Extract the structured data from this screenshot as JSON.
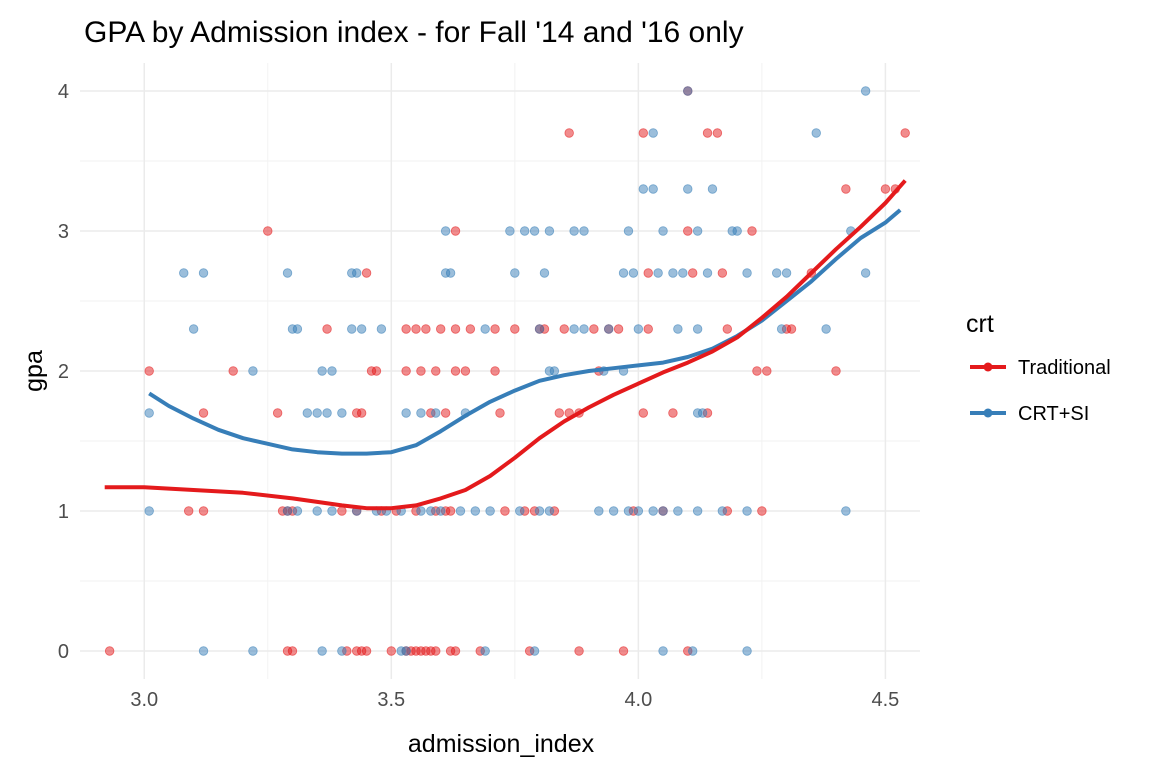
{
  "chart_data": {
    "type": "scatter",
    "title": "GPA by Admission index - for Fall '14 and '16 only",
    "xlabel": "admission_index",
    "ylabel": "gpa",
    "xlim": [
      2.87,
      4.57
    ],
    "ylim": [
      -0.2,
      4.2
    ],
    "x_ticks": [
      3.0,
      3.5,
      4.0,
      4.5
    ],
    "x_tick_labels": [
      "3.0",
      "3.5",
      "4.0",
      "4.5"
    ],
    "y_ticks": [
      0,
      1,
      2,
      3,
      4
    ],
    "y_tick_labels": [
      "0",
      "1",
      "2",
      "3",
      "4"
    ],
    "grid": true,
    "legend": {
      "title": "crt",
      "position": "right"
    },
    "series": [
      {
        "name": "Traditional",
        "color": "#E41A1C",
        "points": [
          [
            2.93,
            0
          ],
          [
            3.29,
            0
          ],
          [
            3.3,
            0
          ],
          [
            3.41,
            0
          ],
          [
            3.43,
            0
          ],
          [
            3.44,
            0
          ],
          [
            3.45,
            0
          ],
          [
            3.5,
            0
          ],
          [
            3.53,
            0
          ],
          [
            3.54,
            0
          ],
          [
            3.55,
            0
          ],
          [
            3.56,
            0
          ],
          [
            3.57,
            0
          ],
          [
            3.58,
            0
          ],
          [
            3.59,
            0
          ],
          [
            3.62,
            0
          ],
          [
            3.63,
            0
          ],
          [
            3.68,
            0
          ],
          [
            3.78,
            0
          ],
          [
            3.88,
            0
          ],
          [
            3.97,
            0
          ],
          [
            4.1,
            0
          ],
          [
            3.09,
            1
          ],
          [
            3.12,
            1
          ],
          [
            3.28,
            1
          ],
          [
            3.29,
            1
          ],
          [
            3.3,
            1
          ],
          [
            3.4,
            1
          ],
          [
            3.43,
            1
          ],
          [
            3.48,
            1
          ],
          [
            3.51,
            1
          ],
          [
            3.55,
            1
          ],
          [
            3.59,
            1
          ],
          [
            3.61,
            1
          ],
          [
            3.62,
            1
          ],
          [
            3.73,
            1
          ],
          [
            3.77,
            1
          ],
          [
            3.79,
            1
          ],
          [
            3.83,
            1
          ],
          [
            3.99,
            1
          ],
          [
            4.05,
            1
          ],
          [
            4.18,
            1
          ],
          [
            4.25,
            1
          ],
          [
            3.01,
            2
          ],
          [
            3.18,
            2
          ],
          [
            3.46,
            2
          ],
          [
            3.47,
            2
          ],
          [
            3.53,
            2
          ],
          [
            3.56,
            2
          ],
          [
            3.59,
            2
          ],
          [
            3.63,
            2
          ],
          [
            3.65,
            2
          ],
          [
            3.71,
            2
          ],
          [
            3.92,
            2
          ],
          [
            4.24,
            2
          ],
          [
            4.26,
            2
          ],
          [
            4.4,
            2
          ],
          [
            3.12,
            1.7
          ],
          [
            3.27,
            1.7
          ],
          [
            3.43,
            1.7
          ],
          [
            3.44,
            1.7
          ],
          [
            3.58,
            1.7
          ],
          [
            3.61,
            1.7
          ],
          [
            3.72,
            1.7
          ],
          [
            3.84,
            1.7
          ],
          [
            3.86,
            1.7
          ],
          [
            3.88,
            1.7
          ],
          [
            4.01,
            1.7
          ],
          [
            4.07,
            1.7
          ],
          [
            4.14,
            1.7
          ],
          [
            3.37,
            2.3
          ],
          [
            3.53,
            2.3
          ],
          [
            3.55,
            2.3
          ],
          [
            3.57,
            2.3
          ],
          [
            3.6,
            2.3
          ],
          [
            3.63,
            2.3
          ],
          [
            3.66,
            2.3
          ],
          [
            3.71,
            2.3
          ],
          [
            3.75,
            2.3
          ],
          [
            3.8,
            2.3
          ],
          [
            3.81,
            2.3
          ],
          [
            3.85,
            2.3
          ],
          [
            3.91,
            2.3
          ],
          [
            3.94,
            2.3
          ],
          [
            3.96,
            2.3
          ],
          [
            4.02,
            2.3
          ],
          [
            4.18,
            2.3
          ],
          [
            4.3,
            2.3
          ],
          [
            4.31,
            2.3
          ],
          [
            3.45,
            2.7
          ],
          [
            4.02,
            2.7
          ],
          [
            4.11,
            2.7
          ],
          [
            4.17,
            2.7
          ],
          [
            4.35,
            2.7
          ],
          [
            3.25,
            3
          ],
          [
            3.63,
            3
          ],
          [
            4.1,
            3
          ],
          [
            4.23,
            3
          ],
          [
            4.42,
            3.3
          ],
          [
            4.5,
            3.3
          ],
          [
            4.52,
            3.3
          ],
          [
            3.86,
            3.7
          ],
          [
            4.01,
            3.7
          ],
          [
            4.14,
            3.7
          ],
          [
            4.16,
            3.7
          ],
          [
            4.54,
            3.7
          ],
          [
            4.1,
            4
          ]
        ],
        "smooth": [
          [
            2.92,
            1.17
          ],
          [
            3.0,
            1.17
          ],
          [
            3.1,
            1.15
          ],
          [
            3.2,
            1.13
          ],
          [
            3.3,
            1.09
          ],
          [
            3.4,
            1.04
          ],
          [
            3.45,
            1.02
          ],
          [
            3.5,
            1.02
          ],
          [
            3.55,
            1.04
          ],
          [
            3.6,
            1.09
          ],
          [
            3.65,
            1.15
          ],
          [
            3.7,
            1.25
          ],
          [
            3.75,
            1.38
          ],
          [
            3.8,
            1.52
          ],
          [
            3.85,
            1.64
          ],
          [
            3.9,
            1.74
          ],
          [
            3.95,
            1.83
          ],
          [
            4.0,
            1.91
          ],
          [
            4.05,
            1.99
          ],
          [
            4.1,
            2.06
          ],
          [
            4.15,
            2.14
          ],
          [
            4.2,
            2.24
          ],
          [
            4.25,
            2.38
          ],
          [
            4.3,
            2.53
          ],
          [
            4.35,
            2.7
          ],
          [
            4.4,
            2.87
          ],
          [
            4.45,
            3.03
          ],
          [
            4.5,
            3.2
          ],
          [
            4.54,
            3.36
          ]
        ]
      },
      {
        "name": "CRT+SI",
        "color": "#377EB8",
        "points": [
          [
            3.12,
            0
          ],
          [
            3.22,
            0
          ],
          [
            3.36,
            0
          ],
          [
            3.4,
            0
          ],
          [
            3.52,
            0
          ],
          [
            3.53,
            0
          ],
          [
            3.69,
            0
          ],
          [
            3.79,
            0
          ],
          [
            4.05,
            0
          ],
          [
            4.11,
            0
          ],
          [
            4.22,
            0
          ],
          [
            3.01,
            1
          ],
          [
            3.29,
            1
          ],
          [
            3.31,
            1
          ],
          [
            3.35,
            1
          ],
          [
            3.38,
            1
          ],
          [
            3.43,
            1
          ],
          [
            3.47,
            1
          ],
          [
            3.49,
            1
          ],
          [
            3.52,
            1
          ],
          [
            3.56,
            1
          ],
          [
            3.58,
            1
          ],
          [
            3.6,
            1
          ],
          [
            3.64,
            1
          ],
          [
            3.67,
            1
          ],
          [
            3.7,
            1
          ],
          [
            3.76,
            1
          ],
          [
            3.8,
            1
          ],
          [
            3.82,
            1
          ],
          [
            3.92,
            1
          ],
          [
            3.95,
            1
          ],
          [
            3.98,
            1
          ],
          [
            4.0,
            1
          ],
          [
            4.03,
            1
          ],
          [
            4.05,
            1
          ],
          [
            4.08,
            1
          ],
          [
            4.12,
            1
          ],
          [
            4.17,
            1
          ],
          [
            4.22,
            1
          ],
          [
            4.42,
            1
          ],
          [
            3.01,
            1.7
          ],
          [
            3.33,
            1.7
          ],
          [
            3.35,
            1.7
          ],
          [
            3.37,
            1.7
          ],
          [
            3.4,
            1.7
          ],
          [
            3.53,
            1.7
          ],
          [
            3.56,
            1.7
          ],
          [
            3.59,
            1.7
          ],
          [
            3.65,
            1.7
          ],
          [
            4.12,
            1.7
          ],
          [
            4.13,
            1.7
          ],
          [
            3.22,
            2
          ],
          [
            3.36,
            2
          ],
          [
            3.38,
            2
          ],
          [
            3.82,
            2
          ],
          [
            3.83,
            2
          ],
          [
            3.93,
            2
          ],
          [
            3.97,
            2
          ],
          [
            3.1,
            2.3
          ],
          [
            3.3,
            2.3
          ],
          [
            3.31,
            2.3
          ],
          [
            3.42,
            2.3
          ],
          [
            3.44,
            2.3
          ],
          [
            3.48,
            2.3
          ],
          [
            3.69,
            2.3
          ],
          [
            3.8,
            2.3
          ],
          [
            3.87,
            2.3
          ],
          [
            3.89,
            2.3
          ],
          [
            3.94,
            2.3
          ],
          [
            4.0,
            2.3
          ],
          [
            4.08,
            2.3
          ],
          [
            4.12,
            2.3
          ],
          [
            4.29,
            2.3
          ],
          [
            4.38,
            2.3
          ],
          [
            3.08,
            2.7
          ],
          [
            3.12,
            2.7
          ],
          [
            3.29,
            2.7
          ],
          [
            3.42,
            2.7
          ],
          [
            3.43,
            2.7
          ],
          [
            3.61,
            2.7
          ],
          [
            3.62,
            2.7
          ],
          [
            3.75,
            2.7
          ],
          [
            3.81,
            2.7
          ],
          [
            3.97,
            2.7
          ],
          [
            3.99,
            2.7
          ],
          [
            4.04,
            2.7
          ],
          [
            4.07,
            2.7
          ],
          [
            4.09,
            2.7
          ],
          [
            4.14,
            2.7
          ],
          [
            4.22,
            2.7
          ],
          [
            4.28,
            2.7
          ],
          [
            4.3,
            2.7
          ],
          [
            4.46,
            2.7
          ],
          [
            3.61,
            3
          ],
          [
            3.74,
            3
          ],
          [
            3.77,
            3
          ],
          [
            3.79,
            3
          ],
          [
            3.82,
            3
          ],
          [
            3.87,
            3
          ],
          [
            3.89,
            3
          ],
          [
            3.98,
            3
          ],
          [
            4.05,
            3
          ],
          [
            4.12,
            3
          ],
          [
            4.19,
            3
          ],
          [
            4.2,
            3
          ],
          [
            4.43,
            3
          ],
          [
            4.01,
            3.3
          ],
          [
            4.03,
            3.3
          ],
          [
            4.1,
            3.3
          ],
          [
            4.15,
            3.3
          ],
          [
            4.03,
            3.7
          ],
          [
            4.36,
            3.7
          ],
          [
            4.1,
            4
          ],
          [
            4.46,
            4
          ]
        ],
        "smooth": [
          [
            3.01,
            1.84
          ],
          [
            3.05,
            1.75
          ],
          [
            3.1,
            1.66
          ],
          [
            3.15,
            1.58
          ],
          [
            3.2,
            1.52
          ],
          [
            3.25,
            1.48
          ],
          [
            3.3,
            1.44
          ],
          [
            3.35,
            1.42
          ],
          [
            3.4,
            1.41
          ],
          [
            3.45,
            1.41
          ],
          [
            3.5,
            1.42
          ],
          [
            3.55,
            1.47
          ],
          [
            3.6,
            1.57
          ],
          [
            3.65,
            1.68
          ],
          [
            3.7,
            1.78
          ],
          [
            3.75,
            1.86
          ],
          [
            3.8,
            1.93
          ],
          [
            3.85,
            1.97
          ],
          [
            3.9,
            2.0
          ],
          [
            3.95,
            2.02
          ],
          [
            4.0,
            2.04
          ],
          [
            4.05,
            2.06
          ],
          [
            4.1,
            2.1
          ],
          [
            4.15,
            2.16
          ],
          [
            4.2,
            2.25
          ],
          [
            4.25,
            2.36
          ],
          [
            4.3,
            2.5
          ],
          [
            4.35,
            2.64
          ],
          [
            4.4,
            2.8
          ],
          [
            4.45,
            2.95
          ],
          [
            4.5,
            3.06
          ],
          [
            4.53,
            3.15
          ]
        ]
      }
    ]
  }
}
